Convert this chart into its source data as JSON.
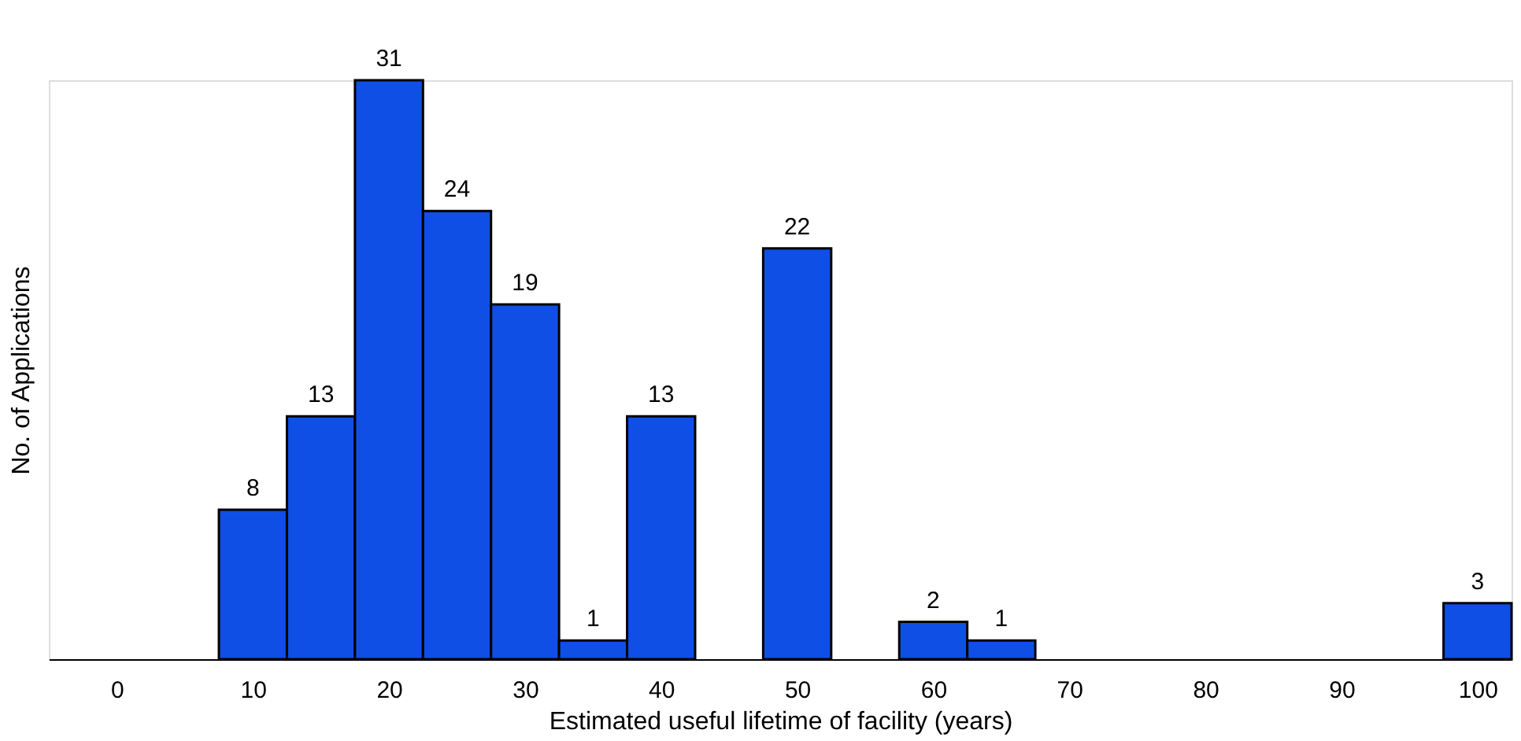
{
  "chart_data": {
    "type": "bar",
    "xlabel": "Estimated useful lifetime of facility (years)",
    "ylabel": "No. of Applications",
    "x": [
      10,
      15,
      20,
      25,
      30,
      35,
      40,
      45,
      50,
      55,
      60,
      65,
      70,
      75,
      80,
      85,
      90,
      95,
      100
    ],
    "values": [
      8,
      13,
      31,
      24,
      19,
      1,
      13,
      null,
      22,
      null,
      2,
      1,
      null,
      null,
      null,
      null,
      null,
      null,
      3
    ],
    "value_labels": [
      "8",
      "13",
      "31",
      "24",
      "19",
      "1",
      "13",
      null,
      "22",
      null,
      "2",
      "1",
      null,
      null,
      null,
      null,
      null,
      null,
      "3"
    ],
    "color": "#0f4fe6",
    "xlim": [
      -5,
      102.5
    ],
    "xticks": [
      0,
      10,
      20,
      30,
      40,
      50,
      60,
      70,
      80,
      90,
      100
    ],
    "tick_labels": "x",
    "grid": false
  }
}
